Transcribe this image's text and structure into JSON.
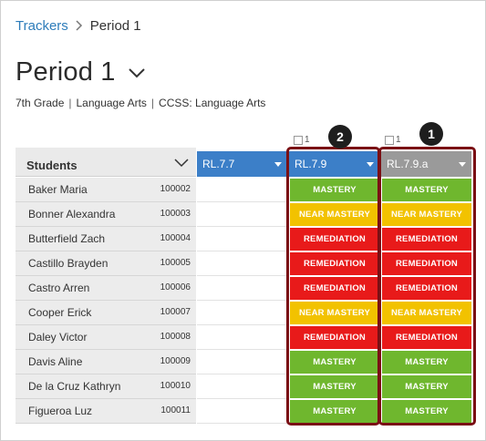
{
  "breadcrumb": {
    "root": "Trackers",
    "separator": ">",
    "current": "Period 1"
  },
  "title": "Period 1",
  "meta": {
    "grade": "7th Grade",
    "subject": "Language Arts",
    "standards": "CCSS: Language Arts",
    "divider": "|"
  },
  "counters": {
    "col2": "1",
    "col3": "1"
  },
  "table": {
    "students_header": "Students",
    "columns": [
      {
        "label": "RL.7.7",
        "color": "#3c7fc8"
      },
      {
        "label": "RL.7.9",
        "color": "#3c7fc8"
      },
      {
        "label": "RL.7.9.a",
        "color": "#9a9a9a"
      }
    ],
    "rows": [
      {
        "name": "Baker Maria",
        "id": "100002",
        "c2": "MASTERY",
        "c3": "MASTERY"
      },
      {
        "name": "Bonner Alexandra",
        "id": "100003",
        "c2": "NEAR MASTERY",
        "c3": "NEAR MASTERY"
      },
      {
        "name": "Butterfield Zach",
        "id": "100004",
        "c2": "REMEDIATION",
        "c3": "REMEDIATION"
      },
      {
        "name": "Castillo Brayden",
        "id": "100005",
        "c2": "REMEDIATION",
        "c3": "REMEDIATION"
      },
      {
        "name": "Castro Arren",
        "id": "100006",
        "c2": "REMEDIATION",
        "c3": "REMEDIATION"
      },
      {
        "name": "Cooper Erick",
        "id": "100007",
        "c2": "NEAR MASTERY",
        "c3": "NEAR MASTERY"
      },
      {
        "name": "Daley Victor",
        "id": "100008",
        "c2": "REMEDIATION",
        "c3": "REMEDIATION"
      },
      {
        "name": "Davis Aline",
        "id": "100009",
        "c2": "MASTERY",
        "c3": "MASTERY"
      },
      {
        "name": "De la Cruz Kathryn",
        "id": "100010",
        "c2": "MASTERY",
        "c3": "MASTERY"
      },
      {
        "name": "Figueroa Luz",
        "id": "100011",
        "c2": "MASTERY",
        "c3": "MASTERY"
      }
    ],
    "levels": {
      "MASTERY": "#6fb72e",
      "NEAR MASTERY": "#f2c200",
      "REMEDIATION": "#e81a1a"
    }
  },
  "callouts": {
    "first": "1",
    "second": "2"
  }
}
